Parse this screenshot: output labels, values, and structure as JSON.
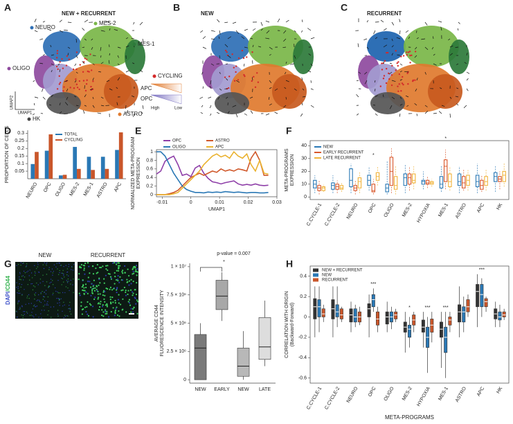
{
  "panels": {
    "letters": [
      "A",
      "B",
      "C",
      "D",
      "E",
      "F",
      "G",
      "H"
    ]
  },
  "umap": {
    "a": {
      "title": "NEW + RECURRENT",
      "clusters": [
        "NEURO",
        "MES-2",
        "MES-1",
        "OLIGO",
        "CYCLING",
        "APC",
        "OPC",
        "ASTRO",
        "HK"
      ],
      "axes": [
        "UMAP2",
        "UMAP1"
      ],
      "scale": [
        "High",
        "Low"
      ]
    },
    "b": {
      "title": "NEW"
    },
    "c": {
      "title": "RECURRENT"
    }
  },
  "images": {
    "titles": [
      "NEW",
      "RECURRENT"
    ],
    "stain": [
      "DAPI",
      "/CD44"
    ]
  },
  "chart_data": [
    {
      "type": "bar",
      "ylabel": "PROPORTION OF CELLS",
      "categories": [
        "NEURO",
        "OPC",
        "OLIGO",
        "MES-2",
        "MES-1",
        "ASTRO",
        "APC"
      ],
      "series": [
        {
          "name": "TOTAL",
          "color": "#2a78b5",
          "values": [
            0.097,
            0.185,
            0.022,
            0.21,
            0.145,
            0.145,
            0.19
          ]
        },
        {
          "name": "CYCLING",
          "color": "#c9562a",
          "values": [
            0.177,
            0.293,
            0.026,
            0.065,
            0.058,
            0.065,
            0.306
          ]
        }
      ],
      "ylim": [
        0,
        0.32
      ],
      "yticks": [
        0.05,
        0.1,
        0.15,
        0.2,
        0.25,
        0.3
      ]
    },
    {
      "type": "line",
      "xlabel": "UMAP1",
      "ylabel": [
        "NORMALIZED META-PROGRAM",
        "EXPRESSION"
      ],
      "x": [
        -0.012,
        -0.0105,
        -0.009,
        -0.0075,
        -0.006,
        -0.0045,
        -0.003,
        -0.0015,
        0,
        0.0015,
        0.003,
        0.0045,
        0.006,
        0.0075,
        0.009,
        0.0105,
        0.012,
        0.0135,
        0.015,
        0.0165,
        0.018,
        0.0195,
        0.021,
        0.0225,
        0.024,
        0.0255,
        0.027
      ],
      "series": [
        {
          "name": "OPC",
          "color": "#8e3fa8",
          "values": [
            0.48,
            0.55,
            0.78,
            0.85,
            0.9,
            0.7,
            0.45,
            0.48,
            0.42,
            0.62,
            0.68,
            0.5,
            0.38,
            0.3,
            0.28,
            0.25,
            0.28,
            0.3,
            0.32,
            0.25,
            0.22,
            0.24,
            0.22,
            0.25,
            0.22,
            0.21,
            0.22
          ]
        },
        {
          "name": "ASTRO",
          "color": "#d0582a",
          "values": [
            0,
            0,
            0,
            0.02,
            0.05,
            0.1,
            0.2,
            0.3,
            0.4,
            0.45,
            0.5,
            0.45,
            0.5,
            0.55,
            0.52,
            0.6,
            0.55,
            0.58,
            0.55,
            0.6,
            0.58,
            0.55,
            0.85,
            1,
            0.8,
            0.45,
            0.45
          ]
        },
        {
          "name": "OLIGO",
          "color": "#2a78b5",
          "values": [
            1,
            1,
            0.9,
            0.7,
            0.5,
            0.35,
            0.2,
            0.12,
            0.08,
            0.05,
            0.05,
            0.04,
            0.06,
            0.05,
            0.06,
            0.05,
            0.07,
            0.06,
            0.05,
            0.06,
            0.05,
            0.04,
            0.05,
            0.05,
            0.04,
            0.04,
            0.05
          ]
        },
        {
          "name": "APC",
          "color": "#eab22f",
          "values": [
            0,
            0,
            0,
            0,
            0.02,
            0.05,
            0.15,
            0.25,
            0.35,
            0.45,
            0.55,
            0.7,
            0.8,
            0.9,
            0.95,
            0.88,
            0.92,
            0.85,
            1,
            0.9,
            0.85,
            0.95,
            0.7,
            0.55,
            0.8,
            0.5,
            0.48
          ]
        }
      ],
      "xlim": [
        -0.012,
        0.03
      ],
      "xticks": [
        -0.01,
        0,
        0.01,
        0.02,
        0.03
      ],
      "ylim": [
        -0.05,
        1.05
      ],
      "yticks": [
        0,
        0.2,
        0.4,
        0.6,
        0.8,
        1
      ]
    },
    {
      "type": "box",
      "ylabel": [
        "META-PROGRAMS",
        "EXPRESSION"
      ],
      "categories": [
        "C.CYCLE-1",
        "C.CYCLE-2",
        "NEURO",
        "OPC",
        "OLIGO",
        "MES-2",
        "HYPOXIA",
        "MES-1",
        "ASTRO",
        "APC",
        "HK"
      ],
      "series": [
        {
          "name": "NEW",
          "color": "#2a78b5",
          "values": [
            [
              3,
              7,
              10,
              13,
              17
            ],
            [
              3,
              6,
              9,
              11,
              17
            ],
            [
              3,
              8,
              13,
              22,
              26
            ],
            [
              5,
              9,
              13,
              17,
              23
            ],
            [
              2,
              4,
              7,
              10,
              28
            ],
            [
              3,
              9,
              15,
              18,
              25
            ],
            [
              6,
              10,
              12,
              13,
              20
            ],
            [
              4,
              7,
              10,
              16,
              24
            ],
            [
              3,
              9,
              12,
              18,
              24
            ],
            [
              3,
              8,
              12,
              17,
              26
            ],
            [
              4,
              12,
              16,
              19,
              24
            ]
          ]
        },
        {
          "name": "EARLY RECURRENT",
          "color": "#d9572b",
          "values": [
            [
              2,
              5,
              7,
              9,
              13
            ],
            [
              3,
              6,
              8,
              10,
              13
            ],
            [
              2,
              5,
              7,
              9,
              13
            ],
            [
              2,
              4,
              5,
              10,
              14
            ],
            [
              3,
              9,
              20,
              31,
              38
            ],
            [
              5,
              10,
              15,
              18,
              24
            ],
            [
              7,
              10,
              11,
              13,
              16
            ],
            [
              6,
              12,
              24,
              29,
              37
            ],
            [
              5,
              7,
              11,
              16,
              22
            ],
            [
              4,
              6,
              9,
              13,
              17
            ],
            [
              6,
              12,
              14,
              16,
              20
            ]
          ]
        },
        {
          "name": "LATE RECURRENT",
          "color": "#f0b33a",
          "values": [
            [
              4,
              5,
              7,
              8,
              10
            ],
            [
              4,
              6,
              7,
              9,
              11
            ],
            [
              3,
              7,
              12,
              15,
              20
            ],
            [
              9,
              13,
              16,
              19,
              24
            ],
            [
              2,
              6,
              9,
              16,
              24
            ],
            [
              6,
              11,
              13,
              18,
              24
            ],
            [
              8,
              10,
              11,
              12,
              14
            ],
            [
              5,
              8,
              12,
              18,
              24
            ],
            [
              5,
              9,
              13,
              17,
              21
            ],
            [
              5,
              9,
              12,
              16,
              22
            ],
            [
              8,
              12,
              17,
              20,
              27
            ]
          ]
        }
      ],
      "ylim": [
        -2,
        44
      ],
      "yticks": [
        0,
        10,
        20,
        30,
        40
      ],
      "annotations": [
        "*",
        "*"
      ]
    },
    {
      "type": "box",
      "ylabel": [
        "AVERAGE CD44",
        "FLUORESCENCE INTENSITY"
      ],
      "categories": [
        "NEW",
        "EARLY",
        "NEW",
        "LATE"
      ],
      "values": [
        [
          0,
          0,
          2800000,
          4000000,
          5000000
        ],
        [
          5200000,
          6200000,
          7400000,
          8800000,
          9500000
        ],
        [
          0,
          300000,
          1200000,
          2800000,
          4300000
        ],
        [
          1200000,
          1800000,
          2900000,
          5500000,
          7000000
        ]
      ],
      "colors": [
        "#7a7a7a",
        "#a8a8a8",
        "#b8b8b8",
        "#dddddd"
      ],
      "ylim": [
        -300000,
        10300000
      ],
      "yticks": [
        0,
        {
          "value": 2500000,
          "label": "2.5 × 10⁶"
        },
        {
          "value": 5000000,
          "label": "5 × 10⁶"
        },
        {
          "value": 7500000,
          "label": "7.5 × 10⁶"
        },
        {
          "value": 10000000,
          "label": "1 × 10⁷"
        }
      ],
      "annotations": [
        "p-value = 0.007",
        "*"
      ]
    },
    {
      "type": "box",
      "xlabel": "META-PROGRAMS",
      "ylabel": [
        "CORRELATION WITH ORIGIN",
        "(Backward-Forward)"
      ],
      "categories": [
        "C.CYCLE-1",
        "C.CYCLE-2",
        "NEURO",
        "OPC",
        "OLIGO",
        "MES-2",
        "HYPOXIA",
        "MES-1",
        "ASTRO",
        "APC",
        "HK"
      ],
      "series": [
        {
          "name": "NEW + RECURRENT",
          "color": "#333333",
          "values": [
            [
              -0.2,
              -0.02,
              0.1,
              0.18,
              0.3
            ],
            [
              -0.2,
              -0.02,
              0.08,
              0.17,
              0.3
            ],
            [
              -0.15,
              -0.05,
              0.02,
              0.08,
              0.15
            ],
            [
              -0.2,
              0,
              0.08,
              0.13,
              0.22
            ],
            [
              -0.15,
              -0.07,
              0,
              0.05,
              0.15
            ],
            [
              -0.35,
              -0.15,
              -0.1,
              -0.05,
              0.05
            ],
            [
              -0.3,
              -0.15,
              -0.1,
              -0.03,
              0.05
            ],
            [
              -0.5,
              -0.2,
              -0.12,
              -0.05,
              0.05
            ],
            [
              -0.2,
              -0.05,
              0.05,
              0.12,
              0.3
            ],
            [
              -0.1,
              0.1,
              0.25,
              0.32,
              0.42
            ],
            [
              -0.1,
              -0.02,
              0.03,
              0.08,
              0.15
            ]
          ]
        },
        {
          "name": "NEW",
          "color": "#2a78b5",
          "values": [
            [
              -0.15,
              0,
              0.1,
              0.17,
              0.3
            ],
            [
              -0.1,
              0,
              0.05,
              0.12,
              0.3
            ],
            [
              -0.1,
              -0.05,
              0,
              0.08,
              0.12
            ],
            [
              0.05,
              0.1,
              0.17,
              0.22,
              0.28
            ],
            [
              -0.12,
              -0.05,
              0,
              0.05,
              0.1
            ],
            [
              -0.3,
              -0.2,
              -0.12,
              -0.08,
              0
            ],
            [
              -0.55,
              -0.3,
              -0.2,
              -0.1,
              0
            ],
            [
              -0.6,
              -0.35,
              -0.2,
              -0.1,
              0.05
            ],
            [
              -0.15,
              -0.05,
              0.05,
              0.1,
              0.2
            ],
            [
              0,
              0.1,
              0.22,
              0.32,
              0.38
            ],
            [
              -0.1,
              -0.03,
              0,
              0.05,
              0.12
            ]
          ]
        },
        {
          "name": "RECURRENT",
          "color": "#c9562a",
          "values": [
            [
              -0.05,
              0,
              0.03,
              0.08,
              0.12
            ],
            [
              -0.05,
              -0.02,
              0.02,
              0.08,
              0.1
            ],
            [
              -0.08,
              -0.05,
              0,
              0.05,
              0.1
            ],
            [
              -0.15,
              -0.08,
              -0.02,
              0.05,
              0.1
            ],
            [
              -0.05,
              -0.02,
              0.02,
              0.05,
              0.08
            ],
            [
              -0.15,
              -0.08,
              -0.03,
              0.02,
              0.05
            ],
            [
              -0.25,
              -0.15,
              -0.08,
              -0.02,
              0.05
            ],
            [
              -0.15,
              -0.08,
              -0.03,
              0,
              0.05
            ],
            [
              0,
              0.05,
              0.1,
              0.17,
              0.22
            ],
            [
              0.05,
              0.1,
              0.15,
              0.18,
              0.2
            ],
            [
              -0.03,
              0,
              0.02,
              0.05,
              0.08
            ]
          ]
        }
      ],
      "ylim": [
        -0.65,
        0.5
      ],
      "yticks": [
        -0.6,
        -0.4,
        -0.2,
        0,
        0.2,
        0.4
      ],
      "annotations": [
        "***",
        "*",
        "***",
        "***",
        "***"
      ]
    }
  ]
}
